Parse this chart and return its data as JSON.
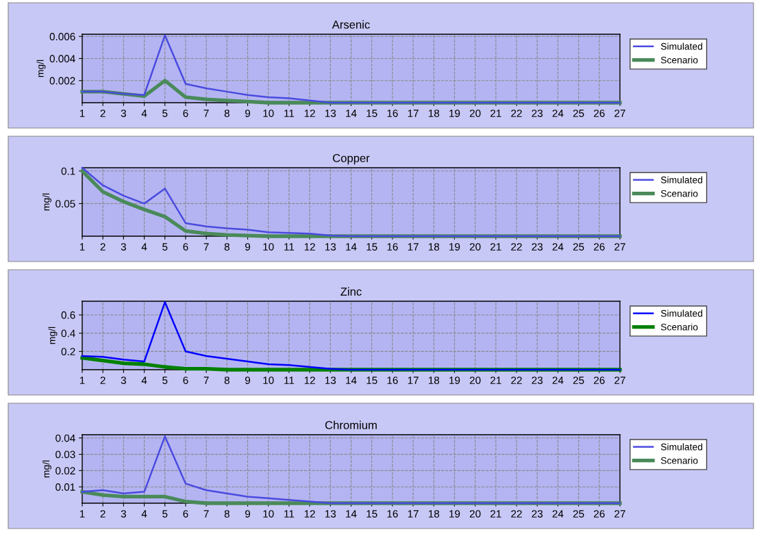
{
  "chart_data": [
    {
      "type": "line",
      "title": "Arsenic",
      "ylabel": "mg/l",
      "x": [
        1,
        2,
        3,
        4,
        5,
        6,
        7,
        8,
        9,
        10,
        11,
        12,
        13,
        14,
        15,
        16,
        17,
        18,
        19,
        20,
        21,
        22,
        23,
        24,
        25,
        26,
        27
      ],
      "xlim": [
        1,
        27
      ],
      "xticks": [
        1,
        2,
        3,
        4,
        5,
        6,
        7,
        8,
        9,
        10,
        11,
        12,
        13,
        14,
        15,
        16,
        17,
        18,
        19,
        20,
        21,
        22,
        23,
        24,
        25,
        26,
        27
      ],
      "ylim": [
        0,
        0.0062
      ],
      "yticks": [
        0.002,
        0.004,
        0.006
      ],
      "grid": true,
      "legend": "right",
      "series": [
        {
          "name": "Simulated",
          "color": "#4a4ae0",
          "values": [
            0.001,
            0.001,
            0.0008,
            0.0007,
            0.0061,
            0.0017,
            0.0013,
            0.001,
            0.0007,
            0.0005,
            0.0004,
            0.0002,
            0,
            0,
            0,
            0,
            0,
            0,
            0,
            0,
            0,
            0,
            0,
            0,
            0,
            0,
            0
          ]
        },
        {
          "name": "Scenario",
          "color": "#4a8a5a",
          "values": [
            0.001,
            0.001,
            0.0008,
            0.0006,
            0.002,
            0.0005,
            0.0003,
            0.0002,
            0.0001,
            0,
            0,
            0,
            0,
            0,
            0,
            0,
            0,
            0,
            0,
            0,
            0,
            0,
            0,
            0,
            0,
            0,
            0
          ]
        }
      ]
    },
    {
      "type": "line",
      "title": "Copper",
      "ylabel": "mg/l",
      "x": [
        1,
        2,
        3,
        4,
        5,
        6,
        7,
        8,
        9,
        10,
        11,
        12,
        13,
        14,
        15,
        16,
        17,
        18,
        19,
        20,
        21,
        22,
        23,
        24,
        25,
        26,
        27
      ],
      "xlim": [
        1,
        27
      ],
      "xticks": [
        1,
        2,
        3,
        4,
        5,
        6,
        7,
        8,
        9,
        10,
        11,
        12,
        13,
        14,
        15,
        16,
        17,
        18,
        19,
        20,
        21,
        22,
        23,
        24,
        25,
        26,
        27
      ],
      "ylim": [
        0,
        0.105
      ],
      "yticks": [
        0.05,
        0.1
      ],
      "grid": true,
      "legend": "right",
      "series": [
        {
          "name": "Simulated",
          "color": "#4a4ae0",
          "values": [
            0.105,
            0.078,
            0.062,
            0.05,
            0.073,
            0.02,
            0.015,
            0.012,
            0.01,
            0.006,
            0.005,
            0.004,
            0.001,
            0,
            0,
            0,
            0,
            0,
            0,
            0,
            0,
            0,
            0,
            0,
            0,
            0,
            0
          ]
        },
        {
          "name": "Scenario",
          "color": "#4a8a5a",
          "values": [
            0.1,
            0.068,
            0.053,
            0.041,
            0.03,
            0.008,
            0.004,
            0.002,
            0.001,
            0,
            0,
            0,
            0,
            0,
            0,
            0,
            0,
            0,
            0,
            0,
            0,
            0,
            0,
            0,
            0,
            0,
            0
          ]
        }
      ]
    },
    {
      "type": "line",
      "title": "Zinc",
      "ylabel": "mg/l",
      "x": [
        1,
        2,
        3,
        4,
        5,
        6,
        7,
        8,
        9,
        10,
        11,
        12,
        13,
        14,
        15,
        16,
        17,
        18,
        19,
        20,
        21,
        22,
        23,
        24,
        25,
        26,
        27
      ],
      "xlim": [
        1,
        27
      ],
      "xticks": [
        1,
        2,
        3,
        4,
        5,
        6,
        7,
        8,
        9,
        10,
        11,
        12,
        13,
        14,
        15,
        16,
        17,
        18,
        19,
        20,
        21,
        22,
        23,
        24,
        25,
        26,
        27
      ],
      "ylim": [
        0,
        0.75
      ],
      "yticks": [
        0.2,
        0.4,
        0.6
      ],
      "grid": true,
      "legend": "right",
      "series": [
        {
          "name": "Simulated",
          "color": "#0000ff",
          "values": [
            0.15,
            0.14,
            0.11,
            0.09,
            0.74,
            0.2,
            0.15,
            0.12,
            0.09,
            0.06,
            0.05,
            0.03,
            0.01,
            0,
            0,
            0,
            0,
            0,
            0,
            0,
            0,
            0,
            0,
            0,
            0,
            0,
            0
          ]
        },
        {
          "name": "Scenario",
          "color": "#008000",
          "values": [
            0.13,
            0.1,
            0.07,
            0.06,
            0.03,
            0.01,
            0.01,
            0,
            0,
            0,
            0,
            0,
            0,
            0,
            0,
            0,
            0,
            0,
            0,
            0,
            0,
            0,
            0,
            0,
            0,
            0,
            0
          ]
        }
      ]
    },
    {
      "type": "line",
      "title": "Chromium",
      "ylabel": "mg/l",
      "x": [
        1,
        2,
        3,
        4,
        5,
        6,
        7,
        8,
        9,
        10,
        11,
        12,
        13,
        14,
        15,
        16,
        17,
        18,
        19,
        20,
        21,
        22,
        23,
        24,
        25,
        26,
        27
      ],
      "xlim": [
        1,
        27
      ],
      "xticks": [
        1,
        2,
        3,
        4,
        5,
        6,
        7,
        8,
        9,
        10,
        11,
        12,
        13,
        14,
        15,
        16,
        17,
        18,
        19,
        20,
        21,
        22,
        23,
        24,
        25,
        26,
        27
      ],
      "ylim": [
        0,
        0.042
      ],
      "yticks": [
        0.01,
        0.02,
        0.03,
        0.04
      ],
      "grid": true,
      "legend": "right",
      "series": [
        {
          "name": "Simulated",
          "color": "#4a4ae0",
          "values": [
            0.007,
            0.008,
            0.006,
            0.007,
            0.041,
            0.012,
            0.008,
            0.006,
            0.004,
            0.003,
            0.002,
            0.001,
            0,
            0,
            0,
            0,
            0,
            0,
            0,
            0,
            0,
            0,
            0,
            0,
            0,
            0,
            0
          ]
        },
        {
          "name": "Scenario",
          "color": "#4a8a5a",
          "values": [
            0.007,
            0.005,
            0.004,
            0.004,
            0.004,
            0.001,
            0,
            0,
            0,
            0,
            0,
            0,
            0,
            0,
            0,
            0,
            0,
            0,
            0,
            0,
            0,
            0,
            0,
            0,
            0,
            0,
            0
          ]
        }
      ]
    }
  ]
}
